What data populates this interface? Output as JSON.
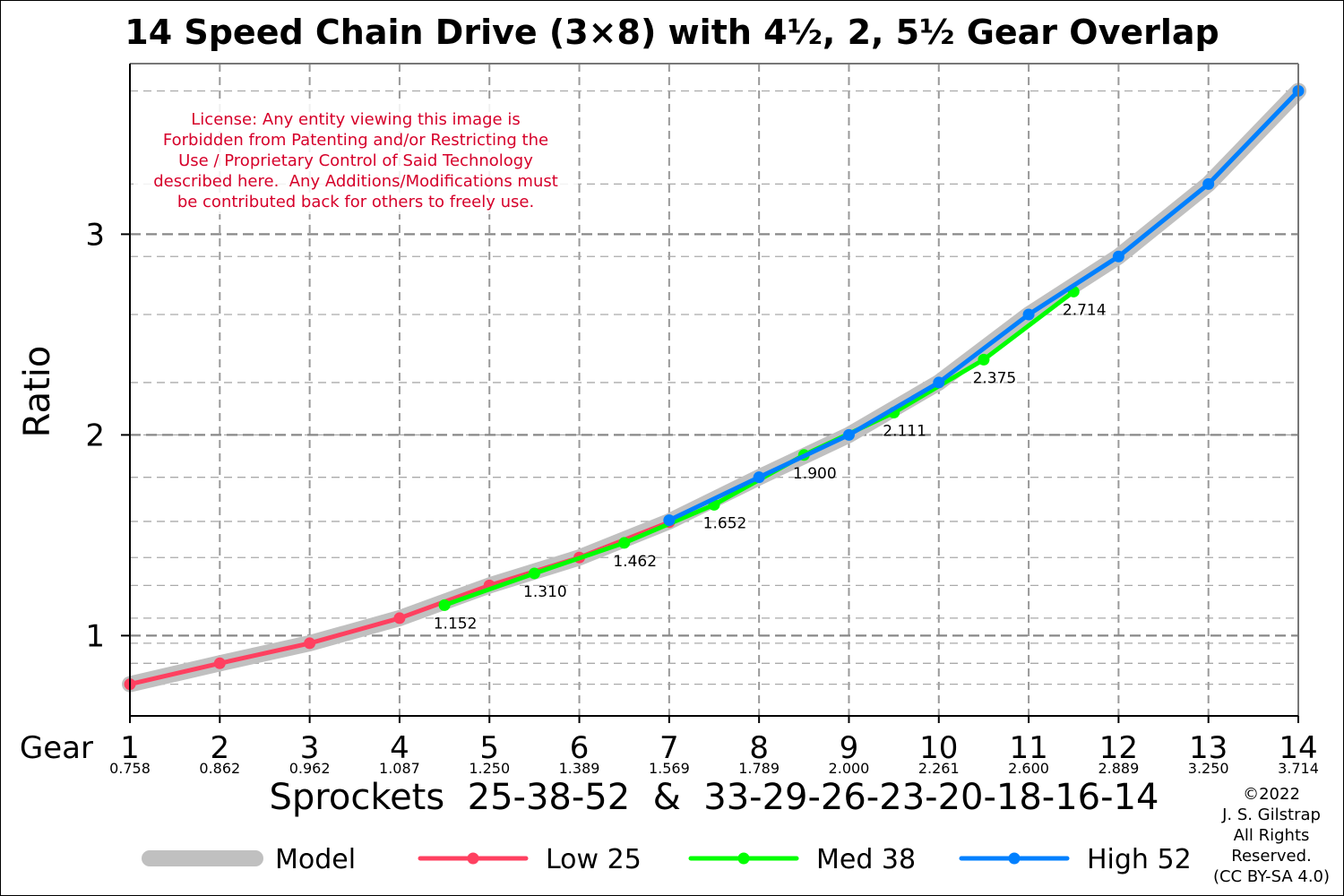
{
  "chart_data": {
    "type": "line",
    "title": "14 Speed Chain Drive (3×8) with 4½, 2, 5½ Gear Overlap",
    "ylabel": "Ratio",
    "xlabel": "Sprockets  25-38-52  &  33-29-26-23-20-18-16-14",
    "x_prefix_label": "Gear",
    "xlim": [
      1,
      14
    ],
    "ylim": [
      0.6,
      3.85
    ],
    "yticks": [
      1,
      2,
      3
    ],
    "ytick_labels": [
      "1",
      "2",
      "3"
    ],
    "ygrid_minor": [
      0.758,
      0.862,
      0.962,
      1.087,
      1.25,
      1.389,
      1.569,
      1.789,
      2.0,
      2.261,
      2.6,
      2.889,
      3.25,
      3.714
    ],
    "grid": true,
    "legend_position": "bottom",
    "gears": [
      {
        "label": "1",
        "ratio": "0.758",
        "value": 0.758
      },
      {
        "label": "2",
        "ratio": "0.862",
        "value": 0.862
      },
      {
        "label": "3",
        "ratio": "0.962",
        "value": 0.962
      },
      {
        "label": "4",
        "ratio": "1.087",
        "value": 1.087
      },
      {
        "label": "5",
        "ratio": "1.250",
        "value": 1.25
      },
      {
        "label": "6",
        "ratio": "1.389",
        "value": 1.389
      },
      {
        "label": "7",
        "ratio": "1.569",
        "value": 1.569
      },
      {
        "label": "8",
        "ratio": "1.789",
        "value": 1.789
      },
      {
        "label": "9",
        "ratio": "2.000",
        "value": 2.0
      },
      {
        "label": "10",
        "ratio": "2.261",
        "value": 2.261
      },
      {
        "label": "11",
        "ratio": "2.600",
        "value": 2.6
      },
      {
        "label": "12",
        "ratio": "2.889",
        "value": 2.889
      },
      {
        "label": "13",
        "ratio": "3.250",
        "value": 3.25
      },
      {
        "label": "14",
        "ratio": "3.714",
        "value": 3.714
      }
    ],
    "series": [
      {
        "name": "Model",
        "color": "#c0c0c0",
        "markers": false,
        "x": [
          1,
          2,
          3,
          4,
          5,
          6,
          7,
          8,
          9,
          10,
          11,
          12,
          13,
          14
        ],
        "y": [
          0.758,
          0.862,
          0.962,
          1.087,
          1.25,
          1.389,
          1.569,
          1.789,
          2.0,
          2.261,
          2.6,
          2.889,
          3.25,
          3.714
        ]
      },
      {
        "name": "Low 25",
        "color": "#ff4060",
        "markers": true,
        "x": [
          1,
          2,
          3,
          4,
          5,
          6,
          7
        ],
        "y": [
          0.758,
          0.862,
          0.962,
          1.087,
          1.25,
          1.389,
          1.565
        ]
      },
      {
        "name": "Med 38",
        "color": "#00ff00",
        "markers": true,
        "x": [
          4.5,
          5.5,
          6.5,
          7.5,
          8.5,
          9.5,
          10.5,
          11.5
        ],
        "y": [
          1.152,
          1.31,
          1.462,
          1.652,
          1.9,
          2.111,
          2.375,
          2.714
        ]
      },
      {
        "name": "High 52",
        "color": "#0080ff",
        "markers": true,
        "x": [
          7,
          8,
          9,
          10,
          11,
          12,
          13,
          14
        ],
        "y": [
          1.575,
          1.789,
          2.0,
          2.261,
          2.6,
          2.889,
          3.25,
          3.714
        ]
      }
    ],
    "data_labels": [
      {
        "x": 4.5,
        "y": 1.152,
        "text": "1.152"
      },
      {
        "x": 5.5,
        "y": 1.31,
        "text": "1.310"
      },
      {
        "x": 6.5,
        "y": 1.462,
        "text": "1.462"
      },
      {
        "x": 7.5,
        "y": 1.652,
        "text": "1.652"
      },
      {
        "x": 8.5,
        "y": 1.9,
        "text": "1.900"
      },
      {
        "x": 9.5,
        "y": 2.111,
        "text": "2.111"
      },
      {
        "x": 10.5,
        "y": 2.375,
        "text": "2.375"
      },
      {
        "x": 11.5,
        "y": 2.714,
        "text": "2.714"
      }
    ],
    "annotations": {
      "license": [
        "License: Any entity viewing this image is",
        "Forbidden from Patenting and/or Restricting the",
        "Use / Proprietary Control of Said Technology",
        "described here.  Any Additions/Modifications must",
        "be contributed back for others to freely use."
      ],
      "license_color": "#d6002a",
      "copyright": [
        "©2022",
        "J. S. Gilstrap",
        "All Rights",
        "Reserved.",
        "(CC BY-SA 4.0)"
      ]
    }
  }
}
